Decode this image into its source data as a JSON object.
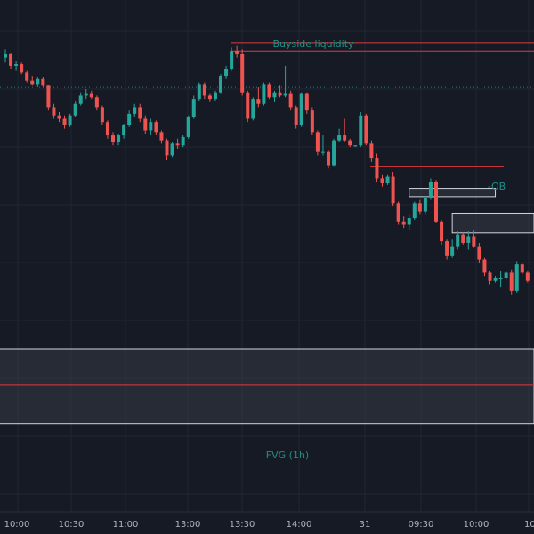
{
  "colors": {
    "background": "#161a25",
    "grid": "#222633",
    "up": "#26a69a",
    "down": "#ef5350",
    "level_line": "#e0393e",
    "dotted_line": "#1f7f79",
    "label_teal": "#1f8f86",
    "zone_fill": "#363a45",
    "zone_border": "#d1d4dc",
    "axis_text": "#b2b5be"
  },
  "annotations": {
    "buyside_label": "Buyside liquidity",
    "ob_label": "-OB",
    "fvg_label": "FVG (1h)"
  },
  "x_axis": {
    "ticks": [
      "10:00",
      "10:30",
      "11:00",
      "13:00",
      "13:30",
      "14:00",
      "31",
      "09:30",
      "10:00",
      "10:"
    ]
  },
  "chart_data": {
    "type": "candlestick",
    "title": "",
    "xlabel": "",
    "ylabel": "",
    "x_ticks": [
      "10:00",
      "10:30",
      "11:00",
      "13:00",
      "13:30",
      "14:00",
      "31",
      "09:30",
      "10:00",
      "10:"
    ],
    "y_range": [
      0,
      100
    ],
    "grid": true,
    "candles": [
      [
        88.0,
        90.5,
        86.5,
        89.0
      ],
      [
        89.0,
        89.5,
        84.5,
        85.5
      ],
      [
        85.5,
        87.0,
        84.0,
        86.0
      ],
      [
        86.0,
        86.5,
        83.0,
        83.5
      ],
      [
        83.5,
        84.0,
        80.5,
        81.0
      ],
      [
        81.0,
        82.5,
        79.5,
        80.0
      ],
      [
        80.0,
        82.0,
        79.0,
        81.5
      ],
      [
        81.5,
        82.0,
        79.0,
        79.5
      ],
      [
        79.5,
        79.5,
        72.0,
        73.0
      ],
      [
        73.0,
        74.0,
        69.5,
        70.5
      ],
      [
        70.5,
        71.5,
        68.5,
        69.5
      ],
      [
        69.5,
        70.5,
        66.5,
        67.5
      ],
      [
        67.5,
        71.0,
        67.0,
        70.5
      ],
      [
        70.5,
        75.0,
        70.0,
        74.0
      ],
      [
        74.0,
        77.5,
        73.5,
        76.5
      ],
      [
        76.5,
        78.5,
        75.5,
        77.0
      ],
      [
        77.0,
        78.0,
        75.5,
        76.0
      ],
      [
        76.0,
        76.5,
        72.0,
        73.0
      ],
      [
        73.0,
        73.5,
        67.5,
        68.5
      ],
      [
        68.5,
        69.0,
        63.5,
        64.5
      ],
      [
        64.5,
        65.5,
        61.5,
        62.5
      ],
      [
        62.5,
        65.0,
        61.5,
        64.5
      ],
      [
        64.5,
        68.0,
        63.5,
        67.5
      ],
      [
        67.5,
        72.0,
        67.0,
        71.0
      ],
      [
        71.0,
        74.0,
        70.0,
        73.0
      ],
      [
        73.0,
        74.0,
        68.5,
        69.5
      ],
      [
        69.5,
        70.5,
        65.0,
        66.0
      ],
      [
        66.0,
        69.5,
        64.5,
        68.5
      ],
      [
        68.5,
        69.0,
        64.5,
        65.5
      ],
      [
        65.5,
        66.0,
        62.0,
        63.0
      ],
      [
        63.0,
        63.5,
        57.0,
        58.5
      ],
      [
        58.5,
        62.5,
        58.0,
        62.0
      ],
      [
        62.0,
        63.5,
        60.5,
        61.5
      ],
      [
        61.5,
        64.5,
        61.0,
        64.0
      ],
      [
        64.0,
        70.5,
        63.5,
        70.0
      ],
      [
        70.0,
        76.5,
        69.5,
        75.5
      ],
      [
        75.5,
        80.5,
        75.0,
        80.0
      ],
      [
        80.0,
        80.5,
        75.5,
        76.5
      ],
      [
        76.5,
        77.0,
        74.5,
        75.5
      ],
      [
        75.5,
        78.0,
        75.0,
        77.5
      ],
      [
        77.5,
        83.0,
        77.0,
        82.5
      ],
      [
        82.5,
        85.5,
        81.5,
        84.5
      ],
      [
        84.5,
        91.0,
        84.0,
        90.0
      ],
      [
        90.0,
        91.5,
        88.0,
        89.0
      ],
      [
        89.0,
        90.5,
        76.5,
        77.5
      ],
      [
        77.5,
        78.0,
        68.5,
        69.5
      ],
      [
        69.5,
        76.0,
        69.0,
        75.5
      ],
      [
        75.5,
        79.0,
        73.0,
        74.0
      ],
      [
        74.0,
        80.5,
        73.5,
        80.0
      ],
      [
        80.0,
        80.5,
        75.5,
        76.0
      ],
      [
        76.0,
        78.0,
        74.5,
        77.5
      ],
      [
        77.5,
        79.5,
        76.0,
        76.5
      ],
      [
        76.5,
        85.5,
        76.0,
        77.0
      ],
      [
        77.0,
        78.0,
        72.0,
        73.0
      ],
      [
        73.0,
        73.5,
        66.5,
        67.5
      ],
      [
        67.5,
        77.5,
        67.0,
        77.0
      ],
      [
        77.0,
        77.5,
        71.0,
        72.0
      ],
      [
        72.0,
        73.0,
        64.5,
        65.5
      ],
      [
        65.5,
        66.0,
        58.5,
        59.5
      ],
      [
        59.5,
        64.5,
        58.5,
        59.5
      ],
      [
        59.5,
        60.0,
        54.5,
        55.5
      ],
      [
        55.5,
        63.5,
        55.0,
        63.0
      ],
      [
        63.0,
        66.5,
        62.5,
        64.5
      ],
      [
        64.5,
        69.5,
        62.5,
        63.0
      ],
      [
        63.0,
        63.5,
        61.0,
        61.5
      ],
      [
        61.5,
        61.5,
        61.0,
        61.5
      ],
      [
        61.5,
        71.5,
        61.0,
        70.5
      ],
      [
        70.5,
        71.0,
        61.5,
        62.0
      ],
      [
        62.0,
        63.0,
        56.5,
        57.5
      ],
      [
        57.5,
        59.0,
        50.5,
        51.5
      ],
      [
        51.5,
        52.5,
        49.0,
        50.0
      ],
      [
        50.0,
        52.5,
        49.5,
        52.0
      ],
      [
        52.0,
        53.5,
        43.0,
        44.0
      ],
      [
        44.0,
        44.5,
        37.5,
        38.5
      ],
      [
        38.5,
        40.0,
        36.5,
        37.5
      ],
      [
        37.5,
        40.5,
        36.0,
        39.5
      ],
      [
        39.5,
        44.5,
        39.0,
        44.0
      ],
      [
        44.0,
        45.0,
        40.5,
        41.5
      ],
      [
        41.5,
        46.0,
        40.5,
        45.5
      ],
      [
        45.5,
        51.5,
        45.0,
        50.5
      ],
      [
        50.5,
        51.0,
        38.0,
        38.5
      ],
      [
        38.5,
        39.0,
        31.5,
        32.5
      ],
      [
        32.5,
        33.0,
        27.0,
        28.0
      ],
      [
        28.0,
        33.0,
        27.5,
        31.0
      ],
      [
        31.0,
        35.5,
        30.0,
        34.5
      ],
      [
        34.5,
        35.0,
        31.5,
        32.0
      ],
      [
        32.0,
        35.5,
        30.0,
        34.0
      ],
      [
        34.0,
        36.0,
        30.5,
        31.0
      ],
      [
        31.0,
        32.0,
        26.0,
        27.0
      ],
      [
        27.0,
        27.5,
        22.0,
        23.0
      ],
      [
        23.0,
        23.5,
        19.5,
        20.5
      ],
      [
        20.5,
        22.0,
        20.0,
        21.5
      ],
      [
        21.5,
        23.5,
        18.5,
        21.5
      ],
      [
        21.5,
        23.5,
        20.5,
        23.0
      ],
      [
        23.0,
        24.0,
        16.5,
        17.5
      ],
      [
        17.5,
        26.5,
        17.0,
        25.5
      ],
      [
        25.5,
        26.0,
        22.5,
        23.0
      ],
      [
        23.0,
        23.5,
        20.0,
        20.5
      ]
    ],
    "levels": {
      "buyside_liquidity_1": 92.5,
      "buyside_liquidity_2": 90.0,
      "ob_line": 55.0,
      "dotted_line": 79.0,
      "fvg_mid": -11.0
    },
    "zones": [
      {
        "name": "ob-zone-1",
        "x_start": 75,
        "x_end": 91,
        "y_low": 46.0,
        "y_high": 48.5
      },
      {
        "name": "ob-zone-2",
        "x_start": 83,
        "x_end": 99,
        "y_low": 35.0,
        "y_high": 41.0
      },
      {
        "name": "fvg-zone",
        "x_start": -2,
        "x_end": 99,
        "y_low": -22.5,
        "y_high": 0.0
      }
    ]
  }
}
